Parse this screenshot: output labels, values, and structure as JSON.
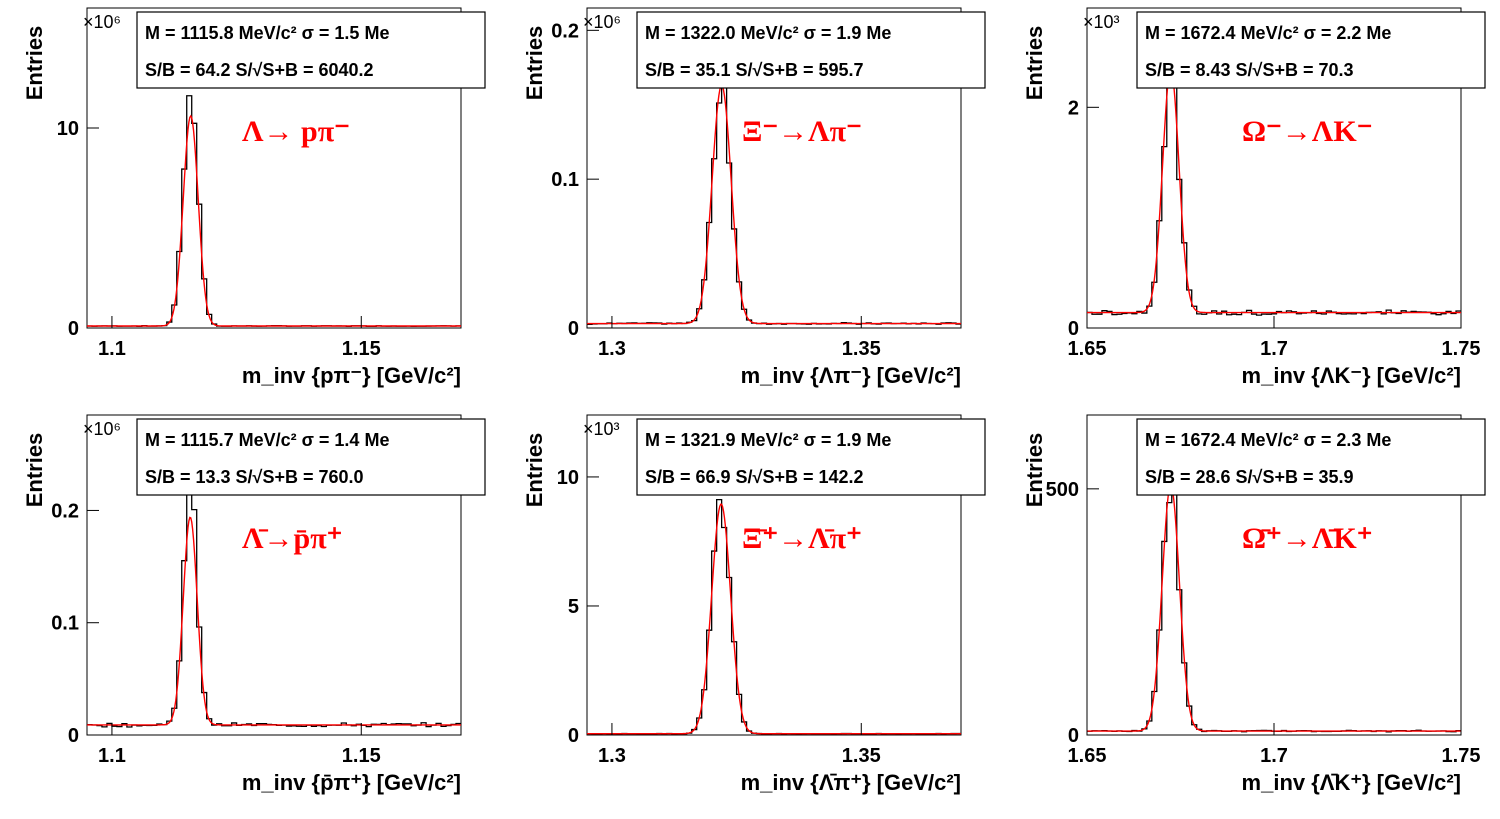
{
  "chart_data": [
    {
      "type": "histogram",
      "ylabel": "Entries",
      "xlabel": "m_inv {pπ⁻} [GeV/c²]",
      "y_scale_label": "×10⁶",
      "xlim": [
        1.095,
        1.17
      ],
      "ylim": [
        0,
        16
      ],
      "xticks": [
        "1.1",
        "1.15"
      ],
      "xtick_values": [
        1.1,
        1.15
      ],
      "yticks": [
        "0",
        "10"
      ],
      "ytick_values": [
        0,
        10
      ],
      "stats": [
        "M = 1115.8 MeV/c² σ = 1.5 Me",
        "S/B = 64.2   S/√S+B = 6040.2"
      ],
      "decay": "Λ→ pπ⁻",
      "peak": {
        "mean": 1.1158,
        "sigma": 0.0015,
        "amplitude": 12.0,
        "fit_amplitude": 10.5
      },
      "background": 0.1,
      "colors": {
        "histogram": "#000000",
        "fit": "#ff0000"
      }
    },
    {
      "type": "histogram",
      "ylabel": "Entries",
      "xlabel": "m_inv {Λπ⁻} [GeV/c²]",
      "y_scale_label": "×10⁶",
      "xlim": [
        1.295,
        1.37
      ],
      "ylim": [
        0,
        0.215
      ],
      "xticks": [
        "1.3",
        "1.35"
      ],
      "xtick_values": [
        1.3,
        1.35
      ],
      "yticks": [
        "0",
        "0.1",
        "0.2"
      ],
      "ytick_values": [
        0,
        0.1,
        0.2
      ],
      "stats": [
        "M = 1322.0 MeV/c² σ = 1.9 Me",
        "S/B = 35.1   S/√S+B = 595.7"
      ],
      "decay": "Ξ⁻→Λπ⁻",
      "peak": {
        "mean": 1.322,
        "sigma": 0.0019,
        "amplitude": 0.158,
        "fit_amplitude": 0.16
      },
      "background": 0.003,
      "colors": {
        "histogram": "#000000",
        "fit": "#ff0000"
      }
    },
    {
      "type": "histogram",
      "ylabel": "Entries",
      "xlabel": "m_inv {ΛK⁻} [GeV/c²]",
      "y_scale_label": "×10³",
      "xlim": [
        1.65,
        1.75
      ],
      "ylim": [
        0,
        2.9
      ],
      "xticks": [
        "1.65",
        "1.7",
        "1.75"
      ],
      "xtick_values": [
        1.65,
        1.7,
        1.75
      ],
      "yticks": [
        "0",
        "2"
      ],
      "ytick_values": [
        0,
        2
      ],
      "stats": [
        "M = 1672.4 MeV/c² σ = 2.2 Me",
        "S/B = 8.43   S/√S+B = 70.3"
      ],
      "decay": "Ω⁻→ΛK⁻",
      "peak": {
        "mean": 1.6724,
        "sigma": 0.0022,
        "amplitude": 2.2,
        "fit_amplitude": 2.2
      },
      "background": 0.14,
      "colors": {
        "histogram": "#000000",
        "fit": "#ff0000"
      }
    },
    {
      "type": "histogram",
      "ylabel": "Entries",
      "xlabel": "m_inv {p̄π⁺} [GeV/c²]",
      "y_scale_label": "×10⁶",
      "xlim": [
        1.095,
        1.17
      ],
      "ylim": [
        0,
        0.285
      ],
      "xticks": [
        "1.1",
        "1.15"
      ],
      "xtick_values": [
        1.1,
        1.15
      ],
      "yticks": [
        "0",
        "0.1",
        "0.2"
      ],
      "ytick_values": [
        0,
        0.1,
        0.2
      ],
      "stats": [
        "M = 1115.7 MeV/c² σ = 1.4 Me",
        "S/B = 13.3   S/√S+B = 760.0"
      ],
      "decay": "Λ̄→p̄π⁺",
      "peak": {
        "mean": 1.1157,
        "sigma": 0.0014,
        "amplitude": 0.21,
        "fit_amplitude": 0.185
      },
      "background": 0.009,
      "colors": {
        "histogram": "#000000",
        "fit": "#ff0000"
      }
    },
    {
      "type": "histogram",
      "ylabel": "Entries",
      "xlabel": "m_inv {Λ̄π⁺} [GeV/c²]",
      "y_scale_label": "×10³",
      "xlim": [
        1.295,
        1.37
      ],
      "ylim": [
        0,
        12.4
      ],
      "xticks": [
        "1.3",
        "1.35"
      ],
      "xtick_values": [
        1.3,
        1.35
      ],
      "yticks": [
        "0",
        "5",
        "10"
      ],
      "ytick_values": [
        0,
        5,
        10
      ],
      "stats": [
        "M = 1321.9 MeV/c² σ = 1.9 Me",
        "S/B = 66.9   S/√S+B = 142.2"
      ],
      "decay": "Ξ̄⁺→Λ̄π⁺",
      "peak": {
        "mean": 1.3219,
        "sigma": 0.0019,
        "amplitude": 8.9,
        "fit_amplitude": 8.9
      },
      "background": 0.05,
      "colors": {
        "histogram": "#000000",
        "fit": "#ff0000"
      }
    },
    {
      "type": "histogram",
      "ylabel": "Entries",
      "xlabel": "m_inv {Λ̄K⁺} [GeV/c²]",
      "y_scale_label": "",
      "xlim": [
        1.65,
        1.75
      ],
      "ylim": [
        0,
        650
      ],
      "xticks": [
        "1.65",
        "1.7",
        "1.75"
      ],
      "xtick_values": [
        1.65,
        1.7,
        1.75
      ],
      "yticks": [
        "0",
        "500"
      ],
      "ytick_values": [
        0,
        500
      ],
      "stats": [
        "M = 1672.4 MeV/c² σ = 2.3 Me",
        "S/B = 28.6   S/√S+B = 35.9"
      ],
      "decay": "Ω̄⁺→Λ̄K⁺",
      "peak": {
        "mean": 1.6724,
        "sigma": 0.0023,
        "amplitude": 500,
        "fit_amplitude": 500
      },
      "background": 8,
      "colors": {
        "histogram": "#000000",
        "fit": "#ff0000"
      }
    }
  ]
}
